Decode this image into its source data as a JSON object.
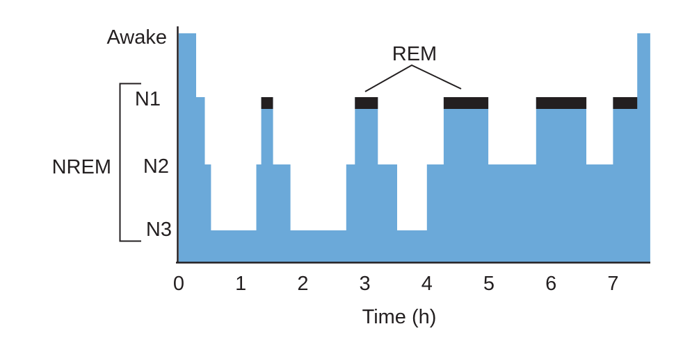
{
  "chart_data": {
    "type": "area",
    "subtype": "hypnogram-step",
    "title": "",
    "xlabel": "Time (h)",
    "x_ticks": [
      0,
      1,
      2,
      3,
      4,
      5,
      6,
      7
    ],
    "xlim": [
      0,
      7.6
    ],
    "stage_levels": [
      "Awake",
      "N1",
      "N2",
      "N3"
    ],
    "nrem_label": "NREM",
    "rem_label": "REM",
    "legend_position": "none",
    "grid": false,
    "segments": [
      {
        "start": 0.0,
        "end": 0.28,
        "stage": "Awake"
      },
      {
        "start": 0.28,
        "end": 0.42,
        "stage": "N1"
      },
      {
        "start": 0.42,
        "end": 0.52,
        "stage": "N2"
      },
      {
        "start": 0.52,
        "end": 1.25,
        "stage": "N3"
      },
      {
        "start": 1.25,
        "end": 1.33,
        "stage": "N2"
      },
      {
        "start": 1.33,
        "end": 1.52,
        "stage": "N1",
        "rem": true
      },
      {
        "start": 1.52,
        "end": 1.8,
        "stage": "N2"
      },
      {
        "start": 1.8,
        "end": 2.7,
        "stage": "N3"
      },
      {
        "start": 2.7,
        "end": 2.84,
        "stage": "N2"
      },
      {
        "start": 2.84,
        "end": 3.21,
        "stage": "N1",
        "rem": true
      },
      {
        "start": 3.21,
        "end": 3.52,
        "stage": "N2"
      },
      {
        "start": 3.52,
        "end": 4.0,
        "stage": "N3"
      },
      {
        "start": 4.0,
        "end": 4.27,
        "stage": "N2"
      },
      {
        "start": 4.27,
        "end": 4.99,
        "stage": "N1",
        "rem": true
      },
      {
        "start": 4.99,
        "end": 5.76,
        "stage": "N2"
      },
      {
        "start": 5.76,
        "end": 6.57,
        "stage": "N1",
        "rem": true
      },
      {
        "start": 6.57,
        "end": 7.0,
        "stage": "N2"
      },
      {
        "start": 7.0,
        "end": 7.39,
        "stage": "N1",
        "rem": true
      },
      {
        "start": 7.39,
        "end": 7.6,
        "stage": "Awake"
      }
    ],
    "colors": {
      "fill": "#6BA9D9",
      "rem_bar": "#231F20",
      "axis": "#231F20",
      "text": "#231F20"
    }
  }
}
